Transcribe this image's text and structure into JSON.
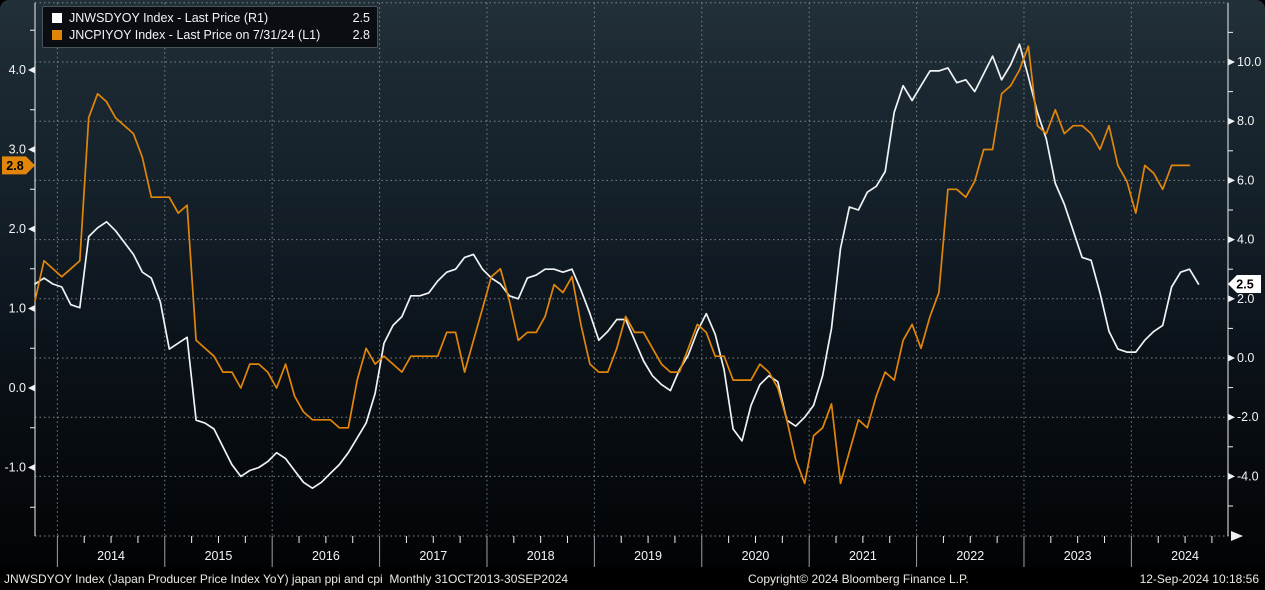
{
  "legend": {
    "items": [
      {
        "label": "JNWSDYOY Index - Last Price (R1)",
        "value": "2.5",
        "color": "#ffffff"
      },
      {
        "label": "JNCPIYOY Index - Last Price on 7/31/24 (L1)",
        "value": "2.8",
        "color": "#e2860a"
      }
    ]
  },
  "footer": {
    "left": "JNWSDYOY Index (Japan Producer Price Index YoY) japan ppi and cpi  Monthly 31OCT2013-30SEP2024",
    "center": "Copyright© 2024 Bloomberg Finance L.P.",
    "right": "12-Sep-2024 10:18:56"
  },
  "axes": {
    "left": {
      "ticks": [
        4.0,
        3.0,
        2.0,
        1.0,
        0.0,
        -1.0
      ],
      "badge": "2.8",
      "badge_value": 2.8
    },
    "right": {
      "ticks": [
        10.0,
        8.0,
        6.0,
        4.0,
        2.0,
        0.0,
        -2.0,
        -4.0
      ],
      "badge": "2.5",
      "badge_value": 2.5
    },
    "x": {
      "years": [
        "2014",
        "2015",
        "2016",
        "2017",
        "2018",
        "2019",
        "2020",
        "2021",
        "2022",
        "2023",
        "2024"
      ]
    }
  },
  "chart_data": {
    "type": "line",
    "title": "JNWSDYOY Index (Japan Producer Price Index YoY) japan ppi and cpi",
    "frequency": "Monthly",
    "period": "31OCT2013-30SEP2024",
    "x_start": "2013-10",
    "x_unit": "month",
    "grid": "dotted",
    "left_axis_range": [
      -6.0,
      12.0
    ],
    "left_axis_note": "L1 scale (CPI) ticks 4.0 to -1.0",
    "right_axis_range_R1": [
      -6.0,
      12.0
    ],
    "series": [
      {
        "name": "JNWSDYOY Index - Last Price (R1)",
        "axis": "right",
        "color": "#f0f3f4",
        "last": 2.5,
        "values": [
          2.5,
          2.7,
          2.5,
          2.4,
          1.8,
          1.7,
          4.1,
          4.4,
          4.6,
          4.3,
          3.9,
          3.5,
          2.9,
          2.7,
          1.9,
          0.3,
          0.5,
          0.7,
          -2.1,
          -2.2,
          -2.4,
          -3.0,
          -3.6,
          -4.0,
          -3.8,
          -3.7,
          -3.5,
          -3.2,
          -3.4,
          -3.8,
          -4.2,
          -4.4,
          -4.2,
          -3.9,
          -3.6,
          -3.2,
          -2.7,
          -2.2,
          -1.2,
          0.5,
          1.1,
          1.4,
          2.1,
          2.1,
          2.2,
          2.6,
          2.9,
          3.0,
          3.4,
          3.5,
          3.0,
          2.7,
          2.5,
          2.1,
          2.0,
          2.7,
          2.8,
          3.0,
          3.0,
          2.9,
          3.0,
          2.3,
          1.5,
          0.6,
          0.9,
          1.3,
          1.3,
          0.6,
          -0.1,
          -0.6,
          -0.9,
          -1.1,
          -0.4,
          0.1,
          0.9,
          1.5,
          0.8,
          -0.4,
          -2.4,
          -2.8,
          -1.6,
          -0.9,
          -0.6,
          -0.8,
          -2.1,
          -2.3,
          -2.0,
          -1.6,
          -0.6,
          1.0,
          3.7,
          5.1,
          5.0,
          5.6,
          5.8,
          6.3,
          8.3,
          9.2,
          8.7,
          9.2,
          9.7,
          9.7,
          9.8,
          9.3,
          9.4,
          9.0,
          9.6,
          10.2,
          9.4,
          9.9,
          10.6,
          9.5,
          8.3,
          7.4,
          5.9,
          5.2,
          4.3,
          3.4,
          3.3,
          2.2,
          0.9,
          0.3,
          0.2,
          0.2,
          0.6,
          0.9,
          1.1,
          2.4,
          2.9,
          3.0,
          2.5
        ]
      },
      {
        "name": "JNCPIYOY Index - Last Price on 7/31/24 (L1)",
        "axis": "left",
        "color": "#e2860a",
        "last": 2.8,
        "values": [
          1.1,
          1.6,
          1.5,
          1.4,
          1.5,
          1.6,
          3.4,
          3.7,
          3.6,
          3.4,
          3.3,
          3.2,
          2.9,
          2.4,
          2.4,
          2.4,
          2.2,
          2.3,
          0.6,
          0.5,
          0.4,
          0.2,
          0.2,
          0.0,
          0.3,
          0.3,
          0.2,
          0.0,
          0.3,
          -0.1,
          -0.3,
          -0.4,
          -0.4,
          -0.4,
          -0.5,
          -0.5,
          0.1,
          0.5,
          0.3,
          0.4,
          0.3,
          0.2,
          0.4,
          0.4,
          0.4,
          0.4,
          0.7,
          0.7,
          0.2,
          0.6,
          1.0,
          1.4,
          1.5,
          1.1,
          0.6,
          0.7,
          0.7,
          0.9,
          1.3,
          1.2,
          1.4,
          0.8,
          0.3,
          0.2,
          0.2,
          0.5,
          0.9,
          0.7,
          0.7,
          0.5,
          0.3,
          0.2,
          0.2,
          0.5,
          0.8,
          0.7,
          0.4,
          0.4,
          0.1,
          0.1,
          0.1,
          0.3,
          0.2,
          0.0,
          -0.4,
          -0.9,
          -1.2,
          -0.6,
          -0.5,
          -0.2,
          -1.2,
          -0.8,
          -0.4,
          -0.5,
          -0.1,
          0.2,
          0.1,
          0.6,
          0.8,
          0.5,
          0.9,
          1.2,
          2.5,
          2.5,
          2.4,
          2.6,
          3.0,
          3.0,
          3.7,
          3.8,
          4.0,
          4.3,
          3.3,
          3.2,
          3.5,
          3.2,
          3.3,
          3.3,
          3.2,
          3.0,
          3.3,
          2.8,
          2.6,
          2.2,
          2.8,
          2.7,
          2.5,
          2.8,
          2.8,
          2.8
        ]
      }
    ]
  }
}
